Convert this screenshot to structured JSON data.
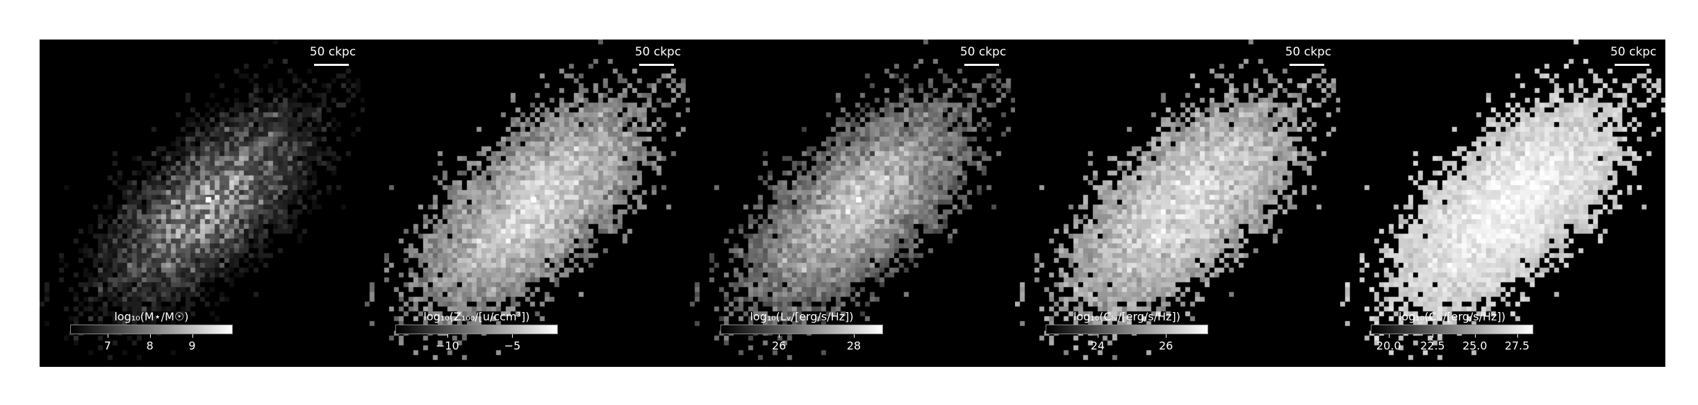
{
  "scale_bar_label": "50 ckpc",
  "panels": [
    {
      "colorbar_title": "log₁₀(M⋆/M☉)",
      "ticks": [
        {
          "label": "7",
          "frac": 0.23
        },
        {
          "label": "8",
          "frac": 0.49
        },
        {
          "label": "9",
          "frac": 0.75
        }
      ],
      "style": "mass"
    },
    {
      "colorbar_title": "log₁₀(Z₁₀₀/[u/ccm³])",
      "ticks": [
        {
          "label": "−10",
          "frac": 0.32
        },
        {
          "label": "−5",
          "frac": 0.72
        }
      ],
      "style": "metal"
    },
    {
      "colorbar_title": "log₁₀(Lᵥ/[erg/s/Hz])",
      "ticks": [
        {
          "label": "26",
          "frac": 0.36
        },
        {
          "label": "28",
          "frac": 0.82
        }
      ],
      "style": "lum"
    },
    {
      "colorbar_title": "log₁₀(Cₗᵥ/[erg/s/Hz])",
      "ticks": [
        {
          "label": "24",
          "frac": 0.32
        },
        {
          "label": "26",
          "frac": 0.74
        }
      ],
      "style": "cont"
    },
    {
      "colorbar_title": "log₁₀(Cₗᵥ/[erg/s/Hz])",
      "ticks": [
        {
          "label": "20.0",
          "frac": 0.11
        },
        {
          "label": "22.5",
          "frac": 0.38
        },
        {
          "label": "25.0",
          "frac": 0.64
        },
        {
          "label": "27.5",
          "frac": 0.9
        }
      ],
      "style": "sat"
    }
  ]
}
